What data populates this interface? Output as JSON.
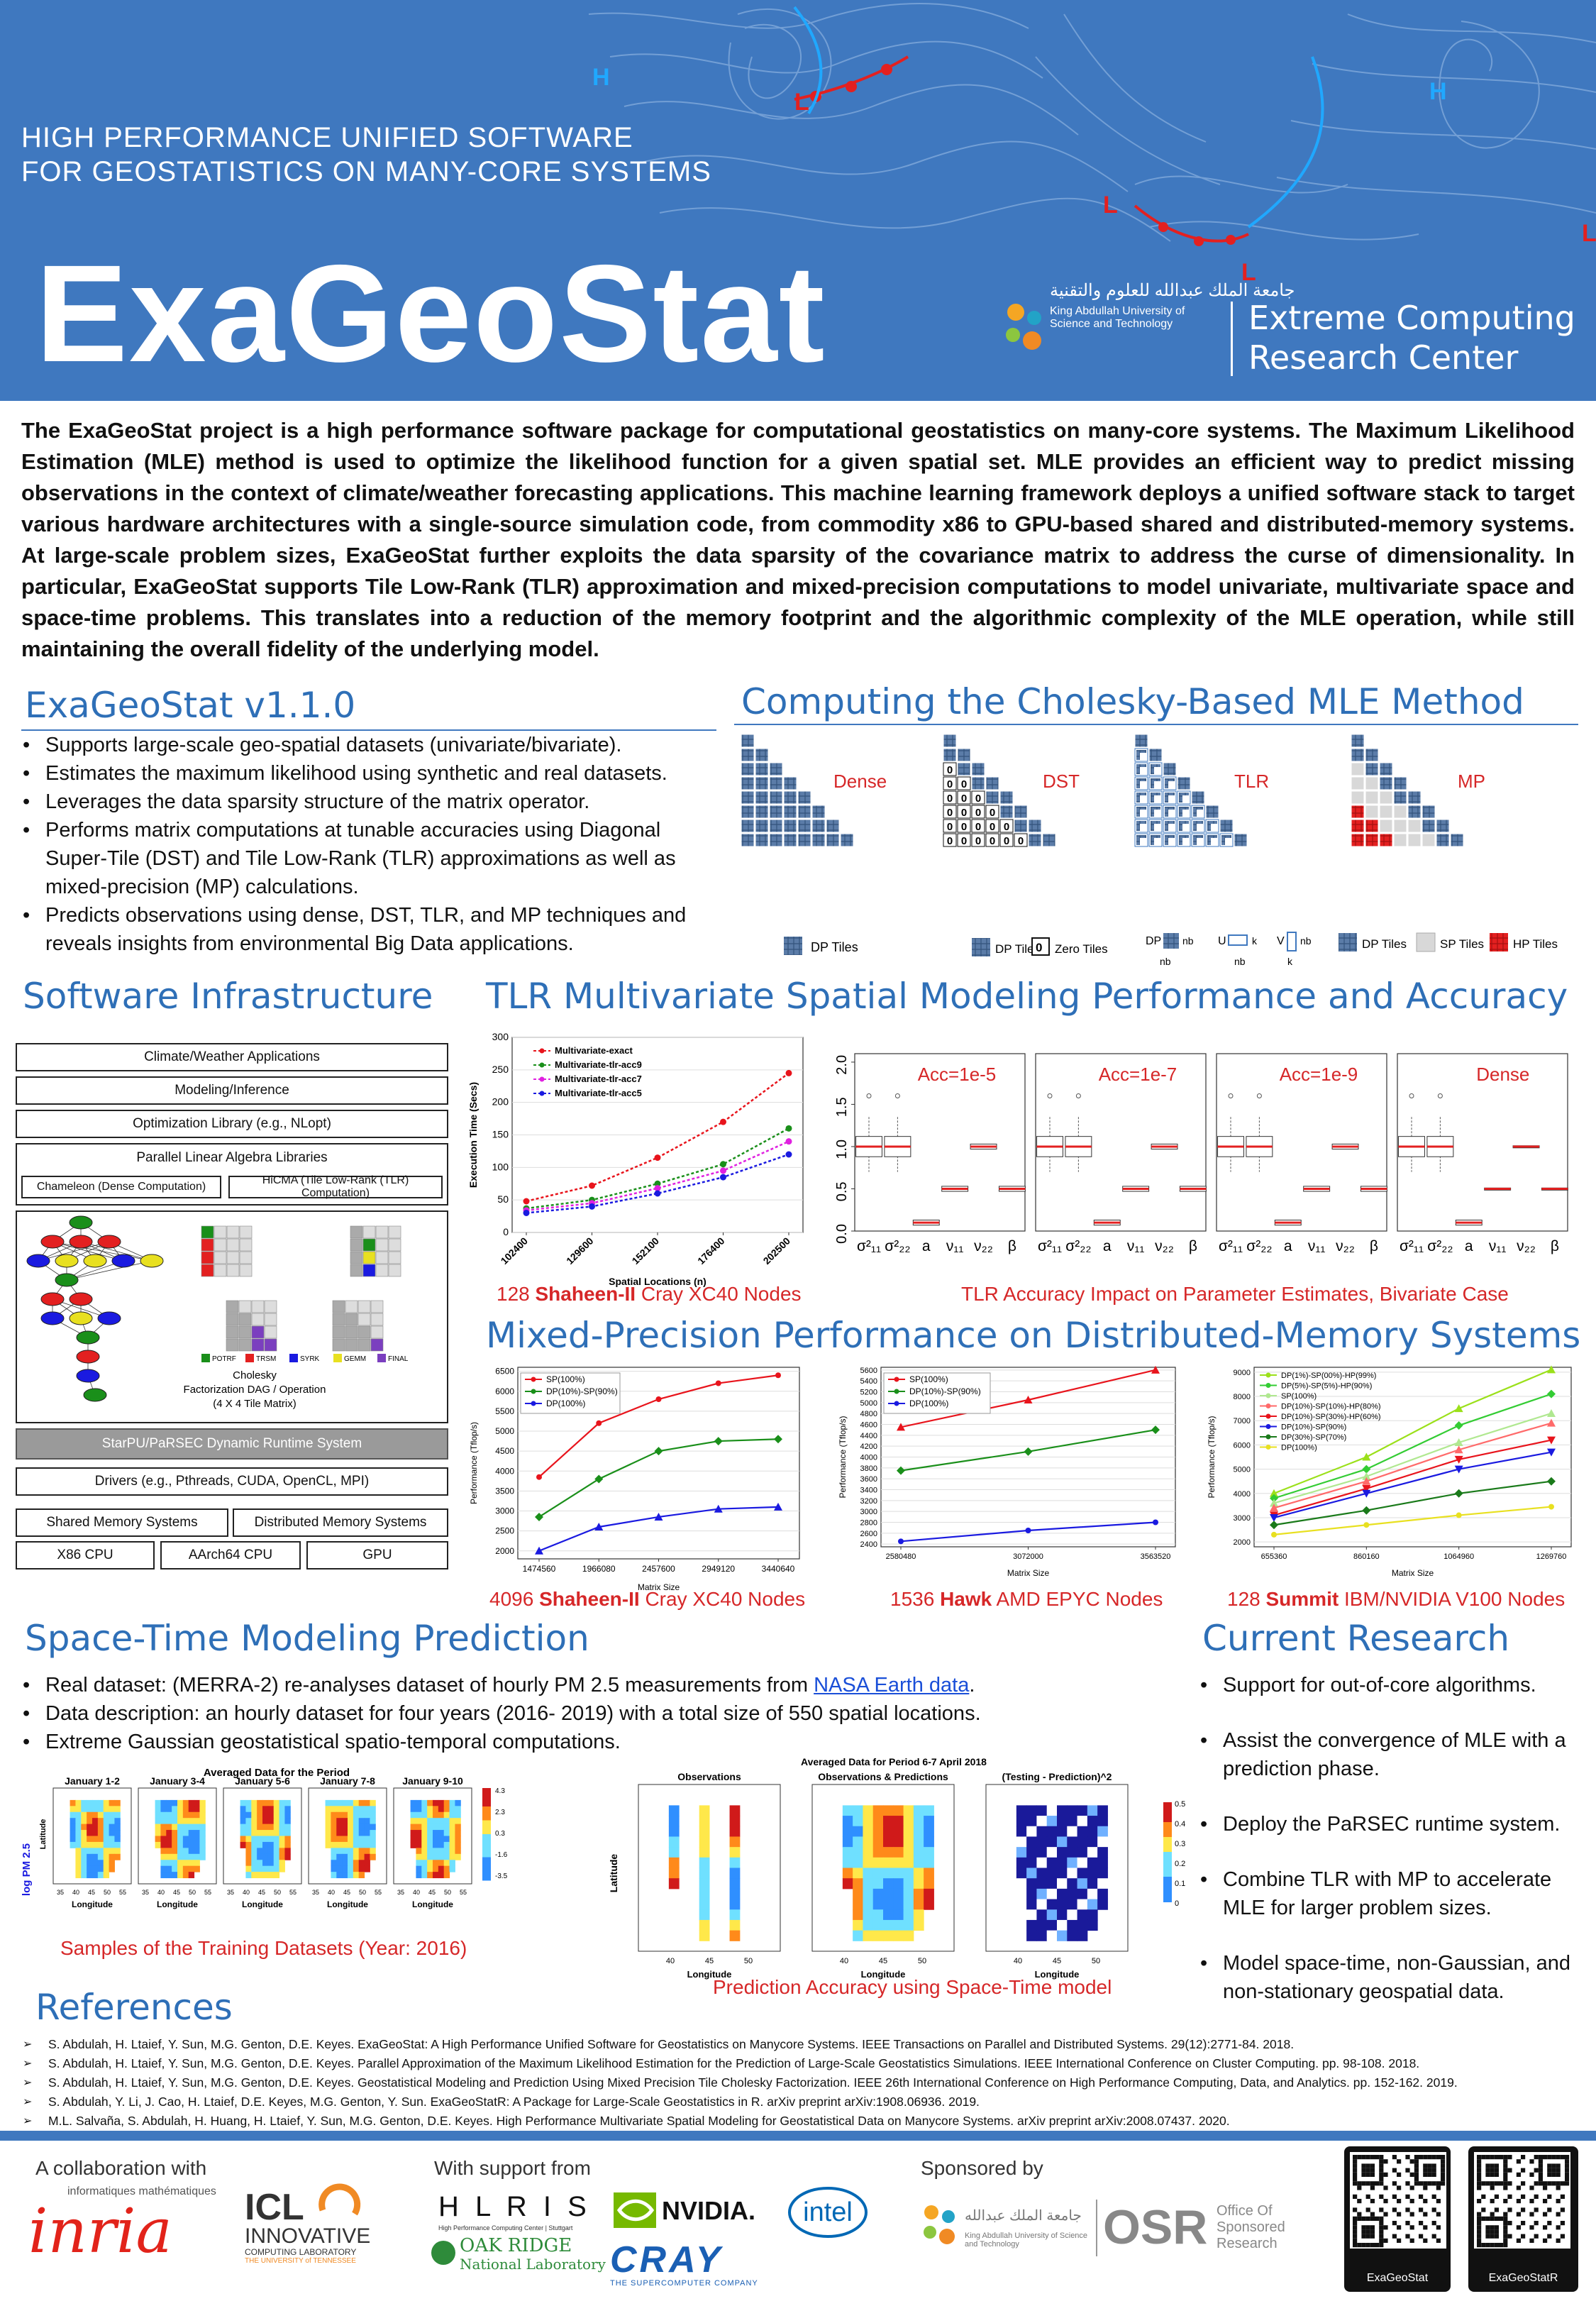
{
  "header": {
    "subtitle_line1": "HIGH PERFORMANCE UNIFIED SOFTWARE",
    "subtitle_line2": "FOR GEOSTATISTICS ON MANY-CORE SYSTEMS",
    "title": "ExaGeoStat",
    "kaust_arabic": "جامعة الملك عبدالله للعلوم والتقنية",
    "kaust_name_line1": "King Abdullah University of",
    "kaust_name_line2": "Science and Technology",
    "ecrc_line1": "Extreme Computing",
    "ecrc_line2": "Research Center"
  },
  "intro": "The ExaGeoStat project is a high performance software package for computational geostatistics on many-core systems. The Maximum Likelihood Estimation (MLE) method is used to optimize the likelihood function for a given spatial set. MLE provides an efficient way to predict missing observations in the context of climate/weather forecasting applications. This machine learning framework deploys a unified software stack to target various hardware architectures with a single-source simulation code, from commodity x86 to GPU-based shared and distributed-memory systems. At large-scale problem sizes, ExaGeoStat further exploits the data sparsity of the covariance matrix to address the curse of dimensionality. In particular, ExaGeoStat supports Tile Low-Rank (TLR) approximation and mixed-precision computations to model univariate, multivariate space and space-time problems. This translates into a reduction of the memory footprint and the algorithmic complexity of the MLE operation, while still maintaining the overall fidelity of the underlying model.",
  "version": {
    "title": "ExaGeoStat v1.1.0",
    "bullets": [
      "Supports large-scale geo-spatial datasets (univariate/bivariate).",
      "Estimates the maximum likelihood using synthetic and real datasets.",
      "Leverages the data sparsity structure of the matrix operator.",
      "Performs matrix computations at tunable accuracies using Diagonal Super-Tile (DST) and Tile Low-Rank (TLR) approximations as well as mixed-precision (MP) calculations.",
      "Predicts observations using dense, DST, TLR, and MP techniques and reveals insights from environmental Big Data applications."
    ]
  },
  "cholesky": {
    "title": "Computing the Cholesky-Based MLE Method",
    "labels": [
      "Dense",
      "DST",
      "TLR",
      "MP"
    ],
    "legend_dp": "DP Tiles",
    "legend_zero": "Zero Tiles",
    "legend_sp": "SP Tiles",
    "legend_hp": "HP Tiles",
    "legend_dp_sym": "DP",
    "legend_nb": "nb",
    "legend_u": "U",
    "legend_v": "V",
    "legend_k": "k"
  },
  "software": {
    "title": "Software Infrastructure",
    "layers": [
      "Climate/Weather Applications",
      "Modeling/Inference",
      "Optimization Library (e.g., NLopt)",
      "Parallel Linear Algebra Libraries"
    ],
    "chameleon": "Chameleon (Dense Computation)",
    "hicma": "HiCMA (Tile Low-Rank (TLR) Computation)",
    "dag_caption_line1": "Cholesky",
    "dag_caption_line2": "Factorization DAG / Operation",
    "dag_caption_line3": "(4 X 4 Tile Matrix)",
    "kernels": [
      "POTRF",
      "TRSM",
      "SYRK",
      "GEMM",
      "FINAL"
    ],
    "runtime": "StarPU/PaRSEC Dynamic Runtime System",
    "drivers": "Drivers (e.g., Pthreads, CUDA, OpenCL, MPI)",
    "memory": [
      "Shared Memory Systems",
      "Distributed Memory Systems"
    ],
    "hardware": [
      "X86 CPU",
      "AArch64 CPU",
      "GPU"
    ]
  },
  "tlr": {
    "title": "TLR Multivariate Spatial Modeling Performance and Accuracy",
    "caption_left_pre": "128 ",
    "caption_left_bold": "Shaheen-II",
    "caption_left_post": " Cray XC40 Nodes",
    "caption_right": "TLR Accuracy Impact on Parameter Estimates, Bivariate Case",
    "box_panels": [
      "Acc=1e-5",
      "Acc=1e-7",
      "Acc=1e-9",
      "Dense"
    ],
    "box_xlabels": [
      "σ²₁₁",
      "σ²₂₂",
      "a",
      "ν₁₁",
      "ν₂₂",
      "β"
    ],
    "box_yticks": [
      "0.0",
      "0.5",
      "1.0",
      "1.5",
      "2.0"
    ]
  },
  "mp": {
    "title": "Mixed-Precision Performance on Distributed-Memory Systems",
    "cap1_pre": "4096 ",
    "cap1_bold": "Shaheen-II",
    "cap1_post": " Cray XC40 Nodes",
    "cap2_pre": "1536 ",
    "cap2_bold": "Hawk",
    "cap2_post": " AMD EPYC Nodes",
    "cap3_pre": "128 ",
    "cap3_bold": "Summit",
    "cap3_post": " IBM/NVIDIA V100 Nodes"
  },
  "spacetime": {
    "title": "Space-Time Modeling Prediction",
    "bullet1_pre": "Real dataset: (MERRA-2) re-analyses dataset of hourly PM 2.5 measurements from ",
    "bullet1_link": "NASA Earth data",
    "bullet1_post": ".",
    "bullet2": "Data description: an hourly dataset for four years (2016- 2019) with a total size of 550 spatial locations.",
    "bullet3": "Extreme Gaussian geostatistical spatio-temporal computations.",
    "train_title": "Averaged Data for the Period",
    "train_panels": [
      "January 1-2",
      "January 3-4",
      "January 5-6",
      "January 7-8",
      "January 9-10"
    ],
    "train_ylabel": "log PM 2.5",
    "lat": "Latitude",
    "lon": "Longitude",
    "colorbar_ticks": [
      "4.3",
      "2.3",
      "0.3",
      "-1.6",
      "-3.5"
    ],
    "train_caption": "Samples of the Training Datasets (Year: 2016)",
    "pred_title": "Averaged Data for Period 6-7 April 2018",
    "pred_panels": [
      "Observations",
      "Observations & Predictions",
      "(Testing - Prediction)^2"
    ],
    "pred_colorbar_ticks": [
      "0.5",
      "0.4",
      "0.3",
      "0.2",
      "0.1",
      "0"
    ],
    "pred_caption": "Prediction Accuracy using Space-Time model"
  },
  "research": {
    "title": "Current Research",
    "bullets": [
      "Support for out-of-core algorithms.",
      "Assist the convergence of MLE with a prediction phase.",
      "Deploy the PaRSEC runtime system.",
      "Combine TLR with MP to accelerate MLE for larger problem sizes.",
      "Model space-time, non-Gaussian, and non-stationary geospatial data."
    ]
  },
  "references": {
    "title": "References",
    "items": [
      "S. Abdulah, H. Ltaief, Y. Sun, M.G. Genton, D.E. Keyes. ExaGeoStat: A High Performance Unified Software for Geostatistics on Manycore Systems. IEEE Transactions on Parallel and Distributed Systems. 29(12):2771-84. 2018.",
      "S. Abdulah, H. Ltaief, Y. Sun, M.G. Genton, D.E. Keyes. Parallel Approximation of the Maximum Likelihood Estimation for the Prediction of Large-Scale Geostatistics Simulations. IEEE International Conference on Cluster Computing. pp. 98-108. 2018.",
      "S. Abdulah, H. Ltaief, Y. Sun, M.G. Genton, D.E. Keyes. Geostatistical Modeling and Prediction Using Mixed Precision Tile Cholesky Factorization. IEEE 26th International Conference on High Performance Computing, Data, and Analytics. pp. 152-162. 2019.",
      "S. Abdulah, Y. Li, J. Cao, H. Ltaief, D.E. Keyes, M.G. Genton, Y. Sun. ExaGeoStatR: A Package for Large-Scale Geostatistics in R. arXiv preprint arXiv:1908.06936. 2019.",
      "M.L. Salvaña, S. Abdulah, H. Huang, H. Ltaief, Y. Sun, M.G. Genton, D.E. Keyes. High Performance Multivariate Spatial Modeling for Geostatistical Data on Manycore Systems. arXiv preprint arXiv:2008.07437. 2020."
    ]
  },
  "footer": {
    "collab": "A collaboration with",
    "support": "With support from",
    "sponsor": "Sponsored by",
    "inria": "inria",
    "inria_small": "informatiques   mathématiques",
    "icl_line1": "ICL",
    "icl_line2": "INNOVATIVE",
    "icl_line3": "COMPUTING LABORATORY",
    "icl_line4": "THE UNIVERSITY of TENNESSEE",
    "hlrs": "H L R I S",
    "hlrs_sub": "High Performance Computing Center | Stuttgart",
    "nvidia": "NVIDIA.",
    "intel": "intel",
    "oakridge_line1": "OAK RIDGE",
    "oakridge_line2": "National Laboratory",
    "cray": "CRAY",
    "cray_sub": "THE SUPERCOMPUTER COMPANY",
    "osr": "OSR",
    "osr_line1": "Office Of",
    "osr_line2": "Sponsored",
    "osr_line3": "Research",
    "kaust_ar": "جامعة الملك عبدالله",
    "kaust_en": "King Abdullah University of Science and Technology",
    "qr1": "ExaGeoStat",
    "qr2": "ExaGeoStatR"
  },
  "chart_data": [
    {
      "type": "line",
      "title": "",
      "xlabel": "Spatial Locations (n)",
      "ylabel": "Execution Time (Secs)",
      "categories": [
        "102400",
        "129600",
        "152100",
        "176400",
        "202500"
      ],
      "ylim": [
        0,
        300
      ],
      "yticks": [
        "0",
        "50",
        "100",
        "150",
        "200",
        "250",
        "300"
      ],
      "series": [
        {
          "name": "Multivariate-exact",
          "color": "#e8141c",
          "values": [
            48,
            72,
            115,
            170,
            245
          ]
        },
        {
          "name": "Multivariate-tlr-acc9",
          "color": "#1a8f1a",
          "values": [
            37,
            50,
            75,
            105,
            160
          ]
        },
        {
          "name": "Multivariate-tlr-acc7",
          "color": "#e020e0",
          "values": [
            34,
            45,
            68,
            95,
            140
          ]
        },
        {
          "name": "Multivariate-tlr-acc5",
          "color": "#1a1ae0",
          "values": [
            30,
            40,
            60,
            85,
            120
          ]
        }
      ]
    },
    {
      "type": "line",
      "title": "",
      "xlabel": "Matrix Size",
      "ylabel": "Performance (Tflop/s)",
      "categories": [
        "1474560",
        "1966080",
        "2457600",
        "2949120",
        "3440640"
      ],
      "ylim": [
        1800,
        6600
      ],
      "yticks": [
        "2000",
        "2500",
        "3000",
        "3500",
        "4000",
        "4500",
        "5000",
        "5500",
        "6000",
        "6500"
      ],
      "series": [
        {
          "name": "SP(100%)",
          "color": "#e8141c",
          "values": [
            3850,
            5200,
            5800,
            6200,
            6400
          ]
        },
        {
          "name": "DP(10%)-SP(90%)",
          "color": "#1a8f1a",
          "values": [
            2850,
            3800,
            4500,
            4750,
            4800
          ]
        },
        {
          "name": "DP(100%)",
          "color": "#1a1ae0",
          "values": [
            2000,
            2600,
            2850,
            3050,
            3100
          ]
        }
      ]
    },
    {
      "type": "line",
      "title": "",
      "xlabel": "Matrix Size",
      "ylabel": "Performance (Tflop/s)",
      "categories": [
        "2580480",
        "3072000",
        "3563520"
      ],
      "ylim": [
        2350,
        5650
      ],
      "yticks": [
        "2400",
        "2600",
        "2800",
        "3000",
        "3200",
        "3400",
        "3600",
        "3800",
        "4000",
        "4200",
        "4400",
        "4600",
        "4800",
        "5000",
        "5200",
        "5400",
        "5600"
      ],
      "series": [
        {
          "name": "SP(100%)",
          "color": "#e8141c",
          "values": [
            4550,
            5050,
            5600
          ]
        },
        {
          "name": "DP(10%)-SP(90%)",
          "color": "#1a8f1a",
          "values": [
            3750,
            4100,
            4500
          ]
        },
        {
          "name": "DP(100%)",
          "color": "#1a1ae0",
          "values": [
            2450,
            2650,
            2800
          ]
        }
      ]
    },
    {
      "type": "line",
      "title": "",
      "xlabel": "Matrix Size",
      "ylabel": "Performance (Tflop/s)",
      "categories": [
        "655360",
        "860160",
        "1064960",
        "1269760"
      ],
      "ylim": [
        1800,
        9200
      ],
      "yticks": [
        "2000",
        "3000",
        "4000",
        "5000",
        "6000",
        "7000",
        "8000",
        "9000"
      ],
      "series": [
        {
          "name": "DP(1%)-SP(00%)-HP(99%)",
          "color": "#9be01a",
          "values": [
            4000,
            5500,
            7500,
            9100
          ]
        },
        {
          "name": "DP(5%)-SP(5%)-HP(90%)",
          "color": "#33cc33",
          "values": [
            3800,
            5000,
            6800,
            8100
          ]
        },
        {
          "name": "SP(100%)",
          "color": "#b0e890",
          "values": [
            3600,
            4700,
            6100,
            7300
          ]
        },
        {
          "name": "DP(10%)-SP(10%)-HP(80%)",
          "color": "#ff6a6a",
          "values": [
            3400,
            4500,
            5800,
            6900
          ]
        },
        {
          "name": "DP(10%)-SP(30%)-HP(60%)",
          "color": "#e8141c",
          "values": [
            3100,
            4200,
            5400,
            6200
          ]
        },
        {
          "name": "DP(10%)-SP(90%)",
          "color": "#1a1ae0",
          "values": [
            3000,
            4000,
            5000,
            5700
          ]
        },
        {
          "name": "DP(30%)-SP(70%)",
          "color": "#1a7a1a",
          "values": [
            2700,
            3300,
            4000,
            4500
          ]
        },
        {
          "name": "DP(100%)",
          "color": "#e8e020",
          "values": [
            2300,
            2700,
            3100,
            3450
          ]
        }
      ]
    }
  ]
}
